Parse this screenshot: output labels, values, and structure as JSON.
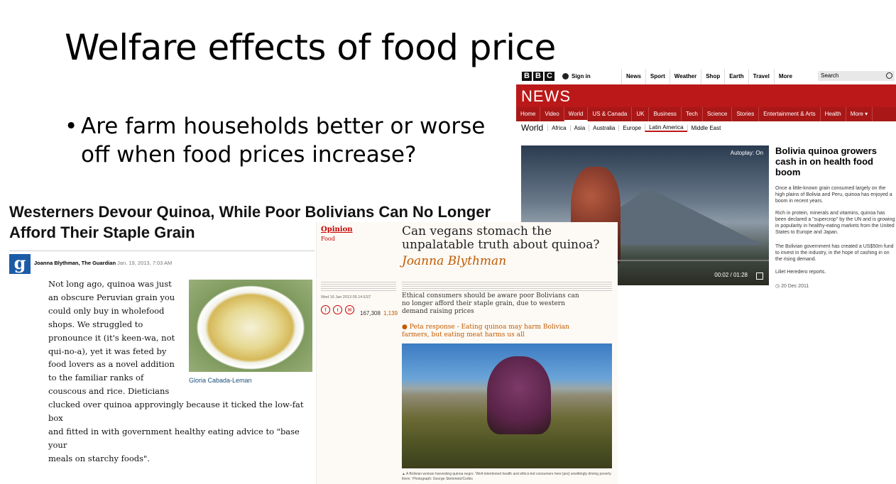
{
  "slide": {
    "title": "Welfare effects of food price",
    "bullet": "Are farm households better or worse off when food prices increase?"
  },
  "bbc": {
    "logo_letters": [
      "B",
      "B",
      "C"
    ],
    "sign_in": "Sign in",
    "top_nav": [
      "News",
      "Sport",
      "Weather",
      "Shop",
      "Earth",
      "Travel",
      "More"
    ],
    "search_placeholder": "Search",
    "brand": "NEWS",
    "sub_nav": [
      "Home",
      "Video",
      "World",
      "US & Canada",
      "UK",
      "Business",
      "Tech",
      "Science",
      "Stories",
      "Entertainment & Arts",
      "Health",
      "More ▾"
    ],
    "section_label": "World",
    "regions": [
      "Africa",
      "Asia",
      "Australia",
      "Europe",
      "Latin America",
      "Middle East"
    ],
    "autoplay": "Autoplay: On",
    "video_time": "00:02 / 01:28",
    "headline": "Bolivia quinoa growers cash in on health food boom",
    "paragraphs": [
      "Once a little-known grain consumed largely on the high plains of Bolivia and Peru, quinoa has enjoyed a boom in recent years.",
      "Rich in protein, minerals and vitamins, quinoa has been declared a \"supercrop\" by the UN and is growing in popularity in healthy-eating markets from the United States to Europe and Japan.",
      "The Bolivian government has created a US$50m fund to invest in the industry, in the hope of cashing in on the rising demand.",
      "Liliet Heredero reports."
    ],
    "date": "20 Dec 2011"
  },
  "guardian_left": {
    "headline": "Westerners Devour Quinoa, While Poor Bolivians Can No Longer Afford Their Staple Grain",
    "logo_letter": "g",
    "author": "Joanna Blythman, The Guardian",
    "date": "Jan. 19, 2013, 7:03 AM",
    "body_lines": [
      "Not long ago, quinoa was just",
      "an obscure Peruvian grain you",
      "could only buy in wholefood",
      "shops. We struggled to",
      "pronounce it (it's keen-wa, not",
      "qui-no-a), yet it was feted by",
      "food lovers as a novel addition",
      "to the familiar ranks of",
      "couscous and rice. Dieticians"
    ],
    "body_wide_lines": [
      "clucked over quinoa approvingly because it ticked the low-fat box",
      "and fitted in with government healthy eating advice to \"base your",
      "meals on starchy foods\"."
    ],
    "image_caption": "Gloria Cabada-Leman"
  },
  "guardian_card": {
    "section": "Opinion",
    "subsection": "Food",
    "title": "Can vegans stomach the unpalatable truth about quinoa?",
    "author": "Joanna Blythman",
    "date": "Wed 16 Jan 2013 05.14 EST",
    "share_icons": [
      "f",
      "t",
      "✉"
    ],
    "shares": "167,308",
    "comments": "1,139",
    "standfirst": "Ethical consumers should be aware poor Bolivians can no longer afford their staple grain, due to western demand raising prices",
    "related_link": "● Peta response - Eating quinoa may harm Bolivian farmers, but eating meat harms us all",
    "photo_caption": "▲ A Bolivian woman harvesting quinoa negro. 'Well-intentioned health and ethics-led consumers here [are] unwittingly driving poverty there.' Photograph: George Steinmetz/Corbis"
  }
}
